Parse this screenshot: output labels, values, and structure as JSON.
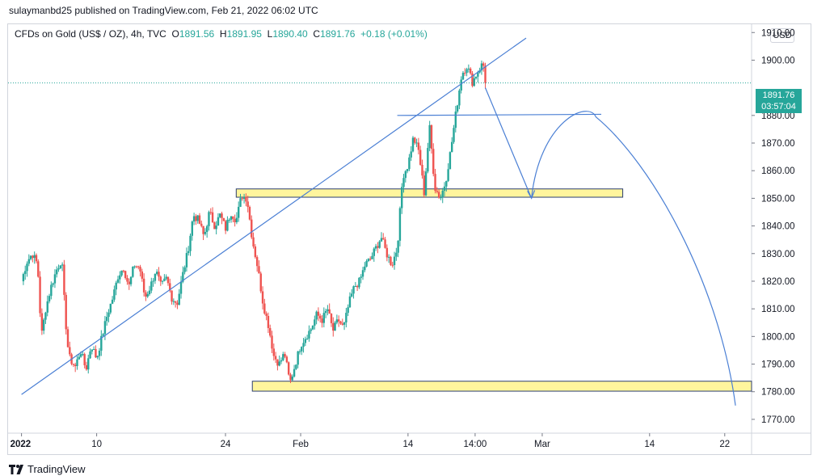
{
  "header": {
    "published": "sulaymanbd25 published on TradingView.com, Feb 21, 2022 06:02 UTC"
  },
  "legend": {
    "symbol": "CFDs on Gold (US$ / OZ), 4h, TVC",
    "o_label": "O",
    "o_value": "1891.56",
    "h_label": "H",
    "h_value": "1891.95",
    "l_label": "L",
    "l_value": "1890.40",
    "c_label": "C",
    "c_value": "1891.76",
    "change": "+0.18 (+0.01%)"
  },
  "currency_button": "USD",
  "price_tag": {
    "price": "1891.76",
    "countdown": "03:57:04"
  },
  "footer": {
    "brand": "TradingView",
    "logo_icon": "tradingview-logo-icon"
  },
  "colors": {
    "up": "#26a69a",
    "down": "#ef5350",
    "drawing": "#4a7fd4",
    "zone_fill": "#fff59d",
    "zone_border": "#2c3e70"
  },
  "chart_data": {
    "type": "candlestick",
    "symbol": "XAUUSD",
    "timeframe": "4h",
    "y_ticks": [
      "1910.00",
      "1900.00",
      "1880.00",
      "1870.00",
      "1860.00",
      "1850.00",
      "1840.00",
      "1830.00",
      "1820.00",
      "1810.00",
      "1800.00",
      "1790.00",
      "1780.00",
      "1770.00"
    ],
    "ylim": [
      1765,
      1913
    ],
    "x_ticks": [
      {
        "label": "2022",
        "x": 0
      },
      {
        "label": "10",
        "x": 14
      },
      {
        "label": "24",
        "x": 38
      },
      {
        "label": "Feb",
        "x": 52
      },
      {
        "label": "14",
        "x": 72
      },
      {
        "label": "14:00",
        "x": 84.5
      },
      {
        "label": "Mar",
        "x": 97
      },
      {
        "label": "14",
        "x": 117
      },
      {
        "label": "22",
        "x": 131
      }
    ],
    "xlim": [
      -2.5,
      136
    ],
    "last_price": 1891.76,
    "price_path": [
      [
        0,
        1820
      ],
      [
        1,
        1827
      ],
      [
        2,
        1830
      ],
      [
        3,
        1826
      ],
      [
        3.7,
        1800
      ],
      [
        4.5,
        1810
      ],
      [
        5.5,
        1818
      ],
      [
        6.5,
        1824
      ],
      [
        7.5,
        1828
      ],
      [
        8,
        1812
      ],
      [
        8.5,
        1798
      ],
      [
        9,
        1792
      ],
      [
        10,
        1789
      ],
      [
        11,
        1795
      ],
      [
        12,
        1788
      ],
      [
        13,
        1797
      ],
      [
        14,
        1792
      ],
      [
        15,
        1800
      ],
      [
        16,
        1808
      ],
      [
        17,
        1814
      ],
      [
        18,
        1822
      ],
      [
        19,
        1825
      ],
      [
        20,
        1818
      ],
      [
        21,
        1826
      ],
      [
        22,
        1825
      ],
      [
        23,
        1814
      ],
      [
        24,
        1818
      ],
      [
        25,
        1824
      ],
      [
        26,
        1818
      ],
      [
        27,
        1821
      ],
      [
        28,
        1814
      ],
      [
        29,
        1812
      ],
      [
        30,
        1822
      ],
      [
        31,
        1831
      ],
      [
        32,
        1844
      ],
      [
        33,
        1842
      ],
      [
        34,
        1836
      ],
      [
        35,
        1845
      ],
      [
        36,
        1840
      ],
      [
        37,
        1844
      ],
      [
        38,
        1839
      ],
      [
        39,
        1845
      ],
      [
        40,
        1842
      ],
      [
        41,
        1851
      ],
      [
        42,
        1850
      ],
      [
        43,
        1835
      ],
      [
        44,
        1825
      ],
      [
        45,
        1812
      ],
      [
        46,
        1804
      ],
      [
        47,
        1793
      ],
      [
        48,
        1790
      ],
      [
        49,
        1794
      ],
      [
        50,
        1783
      ],
      [
        51,
        1790
      ],
      [
        52,
        1797
      ],
      [
        53,
        1800
      ],
      [
        54,
        1803
      ],
      [
        55,
        1808
      ],
      [
        56,
        1806
      ],
      [
        57,
        1810
      ],
      [
        58,
        1802
      ],
      [
        59,
        1806
      ],
      [
        60,
        1803
      ],
      [
        61,
        1812
      ],
      [
        62,
        1818
      ],
      [
        63,
        1820
      ],
      [
        64,
        1826
      ],
      [
        65,
        1828
      ],
      [
        66,
        1832
      ],
      [
        67,
        1836
      ],
      [
        68,
        1830
      ],
      [
        69,
        1826
      ],
      [
        70,
        1832
      ],
      [
        71,
        1858
      ],
      [
        72,
        1862
      ],
      [
        73,
        1872
      ],
      [
        74,
        1867
      ],
      [
        75,
        1852
      ],
      [
        76,
        1876
      ],
      [
        77,
        1854
      ],
      [
        78,
        1850
      ],
      [
        79,
        1856
      ],
      [
        80,
        1868
      ],
      [
        81,
        1882
      ],
      [
        82,
        1895
      ],
      [
        83,
        1898
      ],
      [
        84,
        1892
      ],
      [
        85,
        1896
      ],
      [
        86,
        1899
      ],
      [
        86.4,
        1891.8
      ]
    ],
    "annotations": {
      "trendline": [
        [
          0,
          1779
        ],
        [
          42,
          1826
        ],
        [
          70,
          1874
        ],
        [
          94,
          1908
        ]
      ],
      "horizontal_line": [
        [
          70,
          1880
        ],
        [
          108,
          1880.4
        ]
      ],
      "zone_upper": {
        "x": [
          40,
          112
        ],
        "y": [
          1850.4,
          1853.4
        ]
      },
      "zone_lower": {
        "x": [
          43,
          136
        ],
        "y": [
          1780.2,
          1783.8
        ]
      },
      "projection": [
        [
          86.4,
          1890
        ],
        [
          95,
          1850
        ],
        [
          101,
          1880
        ],
        [
          133,
          1775
        ]
      ],
      "projection_arrow_at": [
        95,
        1850
      ]
    }
  }
}
